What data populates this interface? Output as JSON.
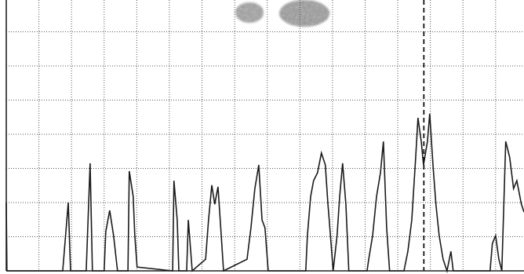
{
  "chart_data": {
    "type": "line",
    "x": [
      0,
      0.02,
      1.73,
      1.9,
      1.97,
      2.45,
      2.57,
      2.64,
      3.0,
      3.05,
      3.17,
      3.29,
      3.37,
      3.41,
      3.73,
      3.77,
      3.89,
      3.94,
      4.01,
      5.1,
      5.14,
      5.24,
      5.29,
      5.53,
      5.58,
      5.7,
      6.11,
      6.2,
      6.3,
      6.39,
      6.49,
      6.59,
      6.66,
      7.38,
      7.5,
      7.62,
      7.74,
      7.84,
      7.93,
      8.03,
      9.18,
      9.23,
      9.33,
      9.42,
      9.54,
      9.66,
      9.78,
      9.86,
      9.9,
      10.02,
      10.14,
      10.22,
      10.31,
      10.41,
      10.5,
      11.06,
      11.11,
      11.23,
      11.35,
      11.47,
      11.56,
      11.66,
      11.75,
      12.19,
      12.31,
      12.43,
      12.55,
      12.62,
      12.72,
      12.79,
      12.91,
      12.98,
      13.08,
      13.17,
      13.27,
      13.39,
      13.51,
      13.63,
      13.7,
      14.83,
      14.9,
      15.0,
      15.1,
      15.19,
      15.31,
      15.43,
      15.55,
      15.65,
      15.79,
      15.87
    ],
    "series": [
      {
        "color": "#1a1a1a",
        "values": [
          2.0,
          0,
          0,
          2.0,
          0,
          0,
          3.15,
          0,
          0,
          1.15,
          1.77,
          1.03,
          0.34,
          0,
          0,
          2.92,
          2.18,
          1.03,
          0.11,
          0,
          2.64,
          1.49,
          0,
          0,
          1.49,
          0,
          0.34,
          1.49,
          2.51,
          1.95,
          2.46,
          1.03,
          0,
          0.34,
          1.26,
          2.41,
          3.1,
          1.49,
          1.26,
          0,
          0,
          1.03,
          2.18,
          2.64,
          2.87,
          3.45,
          3.1,
          1.95,
          1.49,
          0,
          1.03,
          2.18,
          3.15,
          1.95,
          0,
          0,
          0.34,
          1.03,
          2.18,
          2.87,
          3.79,
          1.26,
          0,
          0,
          0.57,
          1.49,
          3.33,
          4.48,
          3.79,
          3.1,
          3.79,
          4.6,
          3.1,
          1.95,
          1.03,
          0.34,
          0,
          0.57,
          0,
          0,
          0.8,
          1.03,
          0.34,
          0,
          3.79,
          3.33,
          2.41,
          2.64,
          1.95,
          1.72
        ]
      }
    ],
    "xlim": [
      0,
      15.87
    ],
    "ylim": [
      0,
      7.9
    ],
    "xticks": [
      0,
      1,
      2,
      3,
      4,
      5,
      6,
      7,
      8,
      9,
      10,
      11,
      12,
      13,
      14,
      15
    ],
    "yticks": [
      0,
      1,
      2,
      3,
      4,
      5,
      6,
      7
    ],
    "grid": true,
    "cursor_x": 12.8
  }
}
